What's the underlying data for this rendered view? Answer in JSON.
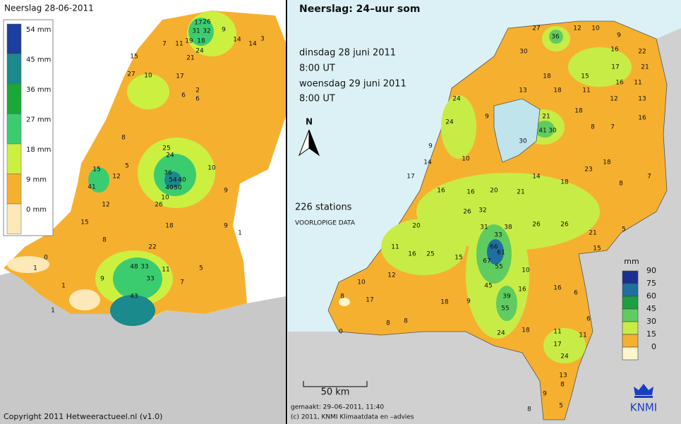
{
  "left_panel": {
    "title": "Neerslag 28-06-2011",
    "legend": [
      {
        "label": "54 mm",
        "color": "#1c3e9c"
      },
      {
        "label": "45 mm",
        "color": "#1a8a8c"
      },
      {
        "label": "36 mm",
        "color": "#1aa838"
      },
      {
        "label": "27 mm",
        "color": "#3ccc70"
      },
      {
        "label": "18 mm",
        "color": "#ccf040"
      },
      {
        "label": "9 mm",
        "color": "#f6b030"
      },
      {
        "label": "0 mm",
        "color": "#fde9b8"
      }
    ],
    "copyright": "Copyright 2011 Hetweeractueel.nl (v1.0)",
    "stations": [
      17,
      26,
      31,
      32,
      19,
      18,
      24,
      21,
      11,
      7,
      14,
      14,
      3,
      9,
      15,
      27,
      10,
      17,
      6,
      6,
      2,
      25,
      24,
      36,
      54,
      40,
      40,
      50,
      10,
      26,
      48,
      33,
      33,
      43,
      11,
      9,
      1,
      1,
      1,
      0,
      12,
      8,
      15,
      15,
      41,
      12,
      10,
      9,
      9,
      1,
      5,
      7,
      5,
      8,
      22,
      18
    ]
  },
  "right_panel": {
    "title": "Neerslag: 24–uur som",
    "period": [
      "dinsdag 28 juni 2011",
      "8:00 UT",
      "woensdag 29 juni 2011",
      "8:00 UT"
    ],
    "station_count": "226 stations",
    "status": "VOORLOPIGE DATA",
    "north": "N",
    "scale": "50 km",
    "made": "gemaakt: 29–06–2011, 11:40",
    "copyright": "(c) 2011, KNMI Klimaatdata en –advies",
    "logo": "KNMI",
    "legend": {
      "unit": "mm",
      "levels": [
        {
          "value": 90,
          "color": "#1c2f8f"
        },
        {
          "value": 75,
          "color": "#1f6fa0"
        },
        {
          "value": 60,
          "color": "#1aa040"
        },
        {
          "value": 45,
          "color": "#60cc60"
        },
        {
          "value": 30,
          "color": "#c8ec46"
        },
        {
          "value": 15,
          "color": "#f6b030"
        },
        {
          "value": 0,
          "color": "#fff5cc"
        }
      ]
    },
    "stations": [
      36,
      27,
      12,
      10,
      9,
      30,
      16,
      22,
      17,
      21,
      18,
      15,
      16,
      11,
      13,
      18,
      11,
      12,
      13,
      21,
      41,
      30,
      8,
      18,
      7,
      16,
      30,
      9,
      24,
      24,
      9,
      10,
      14,
      17,
      16,
      16,
      20,
      21,
      14,
      18,
      23,
      18,
      8,
      7,
      32,
      31,
      33,
      66,
      61,
      67,
      55,
      45,
      39,
      55,
      24,
      18,
      38,
      26,
      26,
      21,
      5,
      15,
      16,
      10,
      16,
      26,
      15,
      25,
      16,
      11,
      20,
      12,
      10,
      0,
      8,
      17,
      8,
      8,
      18,
      9,
      11,
      11,
      24,
      17,
      6,
      6,
      9,
      5,
      8,
      8,
      13
    ]
  }
}
